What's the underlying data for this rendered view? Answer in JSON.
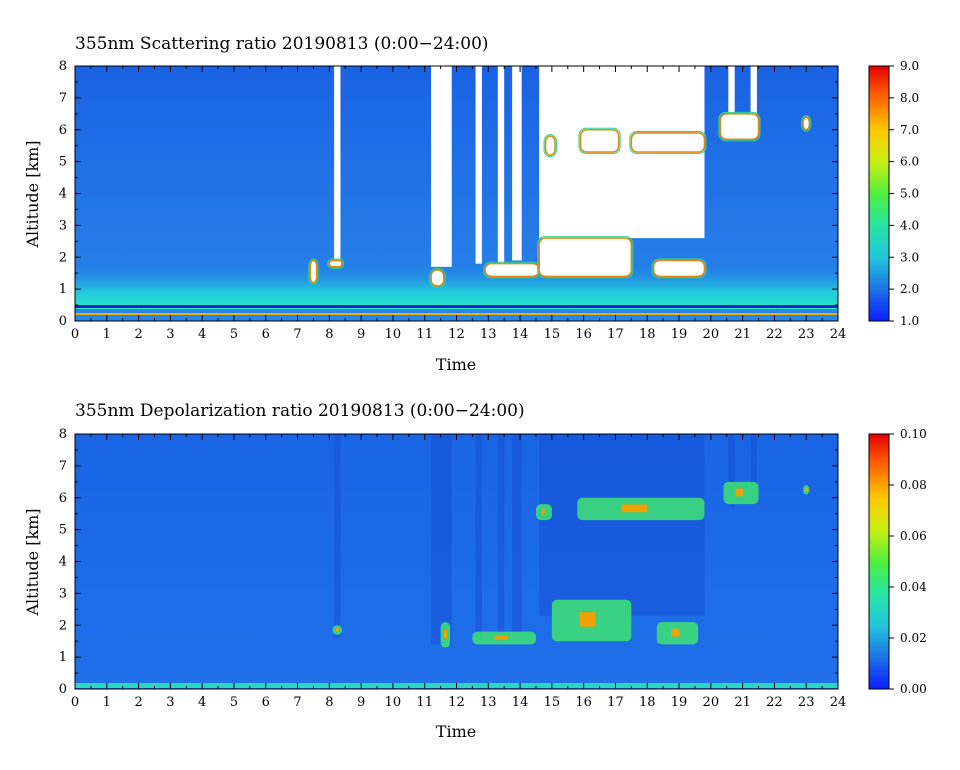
{
  "chart_data": [
    {
      "type": "heatmap",
      "title": "355nm Scattering ratio  20190813 (0:00−24:00)",
      "xlabel": "Time",
      "ylabel": "Altitude [km]",
      "xlim": [
        0,
        24
      ],
      "ylim": [
        0,
        8
      ],
      "x_ticks": [
        "0",
        "1",
        "2",
        "3",
        "4",
        "5",
        "6",
        "7",
        "8",
        "9",
        "10",
        "11",
        "12",
        "13",
        "14",
        "15",
        "16",
        "17",
        "18",
        "19",
        "20",
        "21",
        "22",
        "23",
        "24"
      ],
      "y_ticks": [
        "0",
        "1",
        "2",
        "3",
        "4",
        "5",
        "6",
        "7",
        "8"
      ],
      "colorbar": {
        "range": [
          1.0,
          9.0
        ],
        "ticks": [
          "1.0",
          "2.0",
          "3.0",
          "4.0",
          "5.0",
          "6.0",
          "7.0",
          "8.0",
          "9.0"
        ]
      },
      "colors": {
        "low": "#0a28ff",
        "background": "#1e6ee6",
        "boundary_layer": "#22dcd2",
        "cloud": "#ffffff",
        "high": "#e60000"
      },
      "boundary_layer_top_km": 1.5,
      "cloud_features": [
        {
          "t_start": 7.4,
          "t_end": 7.6,
          "alt_bottom_km": 1.2,
          "alt_top_km": 1.9
        },
        {
          "t_start": 8.0,
          "t_end": 8.4,
          "alt_bottom_km": 1.7,
          "alt_top_km": 1.9
        },
        {
          "t_start": 11.2,
          "t_end": 11.6,
          "alt_bottom_km": 1.1,
          "alt_top_km": 1.6
        },
        {
          "t_start": 12.9,
          "t_end": 14.6,
          "alt_bottom_km": 1.4,
          "alt_top_km": 1.8
        },
        {
          "t_start": 14.6,
          "t_end": 17.5,
          "alt_bottom_km": 1.4,
          "alt_top_km": 2.6
        },
        {
          "t_start": 14.8,
          "t_end": 15.1,
          "alt_bottom_km": 5.2,
          "alt_top_km": 5.8
        },
        {
          "t_start": 15.9,
          "t_end": 17.1,
          "alt_bottom_km": 5.3,
          "alt_top_km": 6.0
        },
        {
          "t_start": 17.5,
          "t_end": 19.8,
          "alt_bottom_km": 5.3,
          "alt_top_km": 5.9
        },
        {
          "t_start": 18.2,
          "t_end": 19.8,
          "alt_bottom_km": 1.4,
          "alt_top_km": 1.9
        },
        {
          "t_start": 20.3,
          "t_end": 21.5,
          "alt_bottom_km": 5.7,
          "alt_top_km": 6.5
        },
        {
          "t_start": 22.9,
          "t_end": 23.1,
          "alt_bottom_km": 6.0,
          "alt_top_km": 6.4
        }
      ],
      "signal_gaps": [
        {
          "t_start": 8.15,
          "t_end": 8.35,
          "alt_bottom_km": 1.9,
          "alt_top_km": 8.0
        },
        {
          "t_start": 11.2,
          "t_end": 11.85,
          "alt_bottom_km": 1.7,
          "alt_top_km": 8.0
        },
        {
          "t_start": 12.6,
          "t_end": 12.8,
          "alt_bottom_km": 1.8,
          "alt_top_km": 8.0
        },
        {
          "t_start": 13.3,
          "t_end": 13.5,
          "alt_bottom_km": 1.8,
          "alt_top_km": 8.0
        },
        {
          "t_start": 13.75,
          "t_end": 14.05,
          "alt_bottom_km": 1.9,
          "alt_top_km": 8.0
        },
        {
          "t_start": 14.6,
          "t_end": 19.8,
          "alt_bottom_km": 2.6,
          "alt_top_km": 8.0
        },
        {
          "t_start": 20.55,
          "t_end": 20.75,
          "alt_bottom_km": 6.0,
          "alt_top_km": 8.0
        },
        {
          "t_start": 21.25,
          "t_end": 21.45,
          "alt_bottom_km": 6.5,
          "alt_top_km": 8.0
        }
      ]
    },
    {
      "type": "heatmap",
      "title": "355nm Depolarization ratio  20190813 (0:00−24:00)",
      "xlabel": "Time",
      "ylabel": "Altitude [km]",
      "xlim": [
        0,
        24
      ],
      "ylim": [
        0,
        8
      ],
      "x_ticks": [
        "0",
        "1",
        "2",
        "3",
        "4",
        "5",
        "6",
        "7",
        "8",
        "9",
        "10",
        "11",
        "12",
        "13",
        "14",
        "15",
        "16",
        "17",
        "18",
        "19",
        "20",
        "21",
        "22",
        "23",
        "24"
      ],
      "y_ticks": [
        "0",
        "1",
        "2",
        "3",
        "4",
        "5",
        "6",
        "7",
        "8"
      ],
      "colorbar": {
        "range": [
          0.0,
          0.1
        ],
        "ticks": [
          "0.00",
          "0.02",
          "0.04",
          "0.06",
          "0.08",
          "0.10"
        ]
      },
      "colors": {
        "background": "#1e6ee6",
        "surface": "#2ad6c6",
        "cloud": "#3cdc78",
        "high": "#e60000"
      },
      "surface_layer_top_km": 0.1,
      "cloud_features": [
        {
          "t_start": 8.1,
          "t_end": 8.4,
          "alt_bottom_km": 1.7,
          "alt_top_km": 2.0
        },
        {
          "t_start": 11.5,
          "t_end": 11.8,
          "alt_bottom_km": 1.3,
          "alt_top_km": 2.1
        },
        {
          "t_start": 12.5,
          "t_end": 14.5,
          "alt_bottom_km": 1.4,
          "alt_top_km": 1.8
        },
        {
          "t_start": 14.5,
          "t_end": 15.0,
          "alt_bottom_km": 5.3,
          "alt_top_km": 5.8
        },
        {
          "t_start": 15.0,
          "t_end": 17.5,
          "alt_bottom_km": 1.5,
          "alt_top_km": 2.8
        },
        {
          "t_start": 15.8,
          "t_end": 19.8,
          "alt_bottom_km": 5.3,
          "alt_top_km": 6.0
        },
        {
          "t_start": 18.3,
          "t_end": 19.6,
          "alt_bottom_km": 1.4,
          "alt_top_km": 2.1
        },
        {
          "t_start": 20.4,
          "t_end": 21.5,
          "alt_bottom_km": 5.8,
          "alt_top_km": 6.5
        },
        {
          "t_start": 22.9,
          "t_end": 23.1,
          "alt_bottom_km": 6.1,
          "alt_top_km": 6.4
        }
      ]
    }
  ]
}
